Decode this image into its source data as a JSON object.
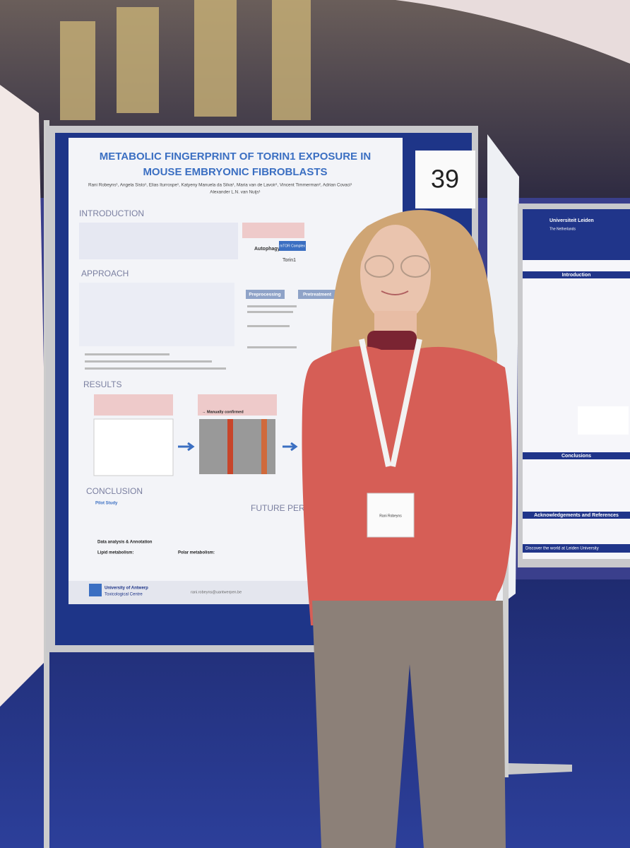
{
  "board_number": "39",
  "poster": {
    "title_lines": [
      "METABOLIC FINGERPRINT OF TORIN1 EXPOSURE IN",
      "MOUSE EMBRYONIC FIBROBLASTS"
    ],
    "author_lines": [
      "Rani Robeyns¹, Angela Sisto¹, Elias Iturrospe¹, Katyeny Manuela da Silva¹, Maria van de Lavoir¹, Vincent Timmerman², Adrian Covaci¹",
      "Alexander L.N. van Nuijs¹"
    ],
    "sections": {
      "introduction": "INTRODUCTION",
      "approach": "APPROACH",
      "results": "RESULTS",
      "conclusion": "CONCLUSION",
      "future": "FUTURE PERSPEC"
    },
    "labels": {
      "autophagy": "Autophagy",
      "mtor": "mTOR Complex",
      "torin": "Torin1",
      "preprocessing": "Preprocessing",
      "pretreatment": "Pretreatment",
      "confirmed": "→ Manually confirmed",
      "pilot": "Pilot Study",
      "lipid": "Lipid metabolism:",
      "polar": "Polar metabolism:",
      "data_analysis": "Data analysis & Annotation"
    },
    "footer": {
      "university": "University of Antwerp",
      "centre": "Toxicological Centre",
      "email": "rani.robeyns@uantwerpen.be"
    }
  },
  "right_poster": {
    "university": "Universiteit Leiden",
    "country": "The Netherlands",
    "introduction": "Introduction",
    "conclusions": "Conclusions",
    "acknowledgements": "Acknowledgements and References",
    "discover": "Discover the world at Leiden University"
  },
  "badge_name": "Rani Robeyns"
}
